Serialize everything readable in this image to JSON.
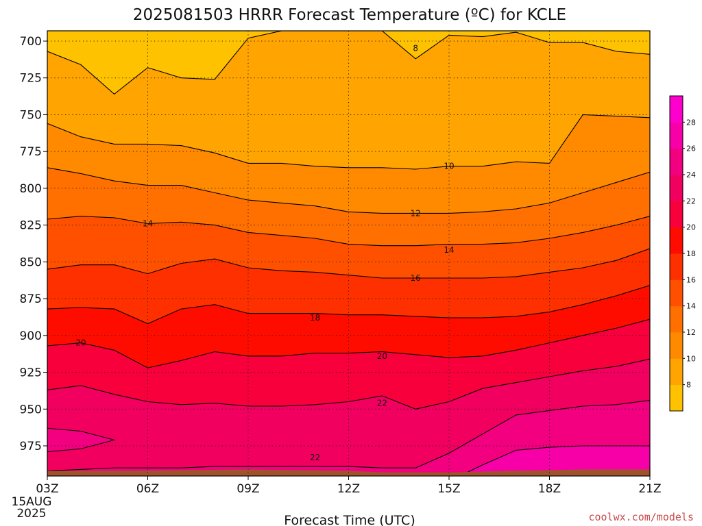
{
  "title": "2025081503 HRRR Forecast Temperature (ºC) for KCLE",
  "credit": "coolwx.com/models",
  "credit_color": "#c84a4a",
  "chart_data": {
    "type": "contour-filled",
    "xlabel": "Forecast Time (UTC)",
    "x_tick_labels": [
      "03Z",
      "06Z",
      "09Z",
      "12Z",
      "15Z",
      "18Z",
      "21Z"
    ],
    "x_date_line1": "15AUG",
    "x_date_line2": "2025",
    "y_tick_labels": [
      "700",
      "725",
      "750",
      "775",
      "800",
      "825",
      "850",
      "875",
      "900",
      "925",
      "950",
      "975"
    ],
    "y_scale": "pressure (hPa), inverted",
    "grid": "dotted",
    "colorbar": {
      "ticks": [
        "8",
        "10",
        "12",
        "14",
        "16",
        "18",
        "20",
        "22",
        "24",
        "26",
        "28"
      ],
      "colors": [
        "#ffc200",
        "#ffa400",
        "#ff8a00",
        "#ff7000",
        "#ff5000",
        "#ff3000",
        "#ff0c00",
        "#f8003c",
        "#f20060",
        "#f20080",
        "#f800a8",
        "#ff00cc"
      ]
    },
    "band_colors": [
      "#ffc200",
      "#ffa400",
      "#ff8a00",
      "#ff7000",
      "#ff5000",
      "#ff3000",
      "#ff0c00",
      "#f8003c",
      "#f20060",
      "#f20080",
      "#f800a8"
    ],
    "ground_color": "#a0522d",
    "contour_labels": [
      {
        "text": "8",
        "t": 14,
        "p": 705
      },
      {
        "text": "10",
        "t": 15,
        "p": 785
      },
      {
        "text": "12",
        "t": 14,
        "p": 817
      },
      {
        "text": "14",
        "t": 6,
        "p": 824
      },
      {
        "text": "14",
        "t": 15,
        "p": 842
      },
      {
        "text": "16",
        "t": 14,
        "p": 861
      },
      {
        "text": "18",
        "t": 11,
        "p": 888
      },
      {
        "text": "20",
        "t": 4,
        "p": 905
      },
      {
        "text": "20",
        "t": 13,
        "p": 914
      },
      {
        "text": "22",
        "t": 13,
        "p": 946
      },
      {
        "text": "22",
        "t": 11,
        "p": 983
      }
    ]
  }
}
